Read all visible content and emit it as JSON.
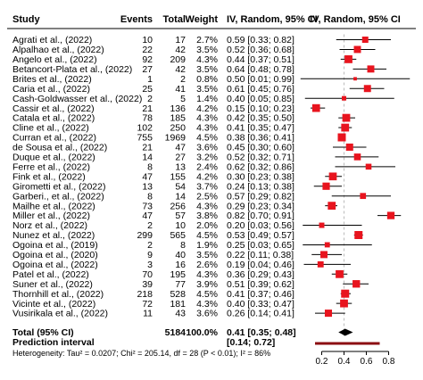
{
  "header": {
    "study": "Study",
    "events": "Events",
    "total": "Total",
    "weight": "Weight",
    "effect": "IV, Random, 95% CI",
    "plot_title": "IV, Random, 95% CI"
  },
  "summary": {
    "label": "Total (95% CI)",
    "total": "5184",
    "weight": "100.0%",
    "ci_text": "0.41 [0.35; 0.48]",
    "estimate": 0.41,
    "lower": 0.35,
    "upper": 0.48,
    "prediction_label": "Prediction interval",
    "prediction_text": "[0.14; 0.72]",
    "prediction_lower": 0.14,
    "prediction_upper": 0.72,
    "heterogeneity": "Heterogeneity: Tau² = 0.0207; Chi² = 205.14, df = 28 (P < 0.01); I² = 86%"
  },
  "colors": {
    "square": "#e8141e",
    "prediction": "#8b0d12",
    "line": "#000000",
    "grid": "#bbbbbb"
  },
  "chart_data": {
    "type": "forest",
    "xlim": [
      0.1,
      0.9
    ],
    "xticks": [
      0.2,
      0.4,
      0.6,
      0.8
    ],
    "reference_line": 0.4,
    "studies": [
      {
        "name": "Agrati et al., (2022)",
        "events": 10,
        "total": 17,
        "weight": "2.7%",
        "ci": "0.59 [0.33; 0.82]",
        "est": 0.59,
        "lo": 0.33,
        "hi": 0.82
      },
      {
        "name": "Alpalhao et al., (2022)",
        "events": 22,
        "total": 42,
        "weight": "3.5%",
        "ci": "0.52 [0.36; 0.68]",
        "est": 0.52,
        "lo": 0.36,
        "hi": 0.68
      },
      {
        "name": "Angelo et al., (2022)",
        "events": 92,
        "total": 209,
        "weight": "4.3%",
        "ci": "0.44 [0.37; 0.51]",
        "est": 0.44,
        "lo": 0.37,
        "hi": 0.51
      },
      {
        "name": "Betancort-Plata et al., (2022)",
        "events": 27,
        "total": 42,
        "weight": "3.5%",
        "ci": "0.64 [0.48; 0.78]",
        "est": 0.64,
        "lo": 0.48,
        "hi": 0.78
      },
      {
        "name": "Brites et al., (2022)",
        "events": 1,
        "total": 2,
        "weight": "0.8%",
        "ci": "0.50 [0.01; 0.99]",
        "est": 0.5,
        "lo": 0.01,
        "hi": 0.99
      },
      {
        "name": "Caria et al., (2022)",
        "events": 25,
        "total": 41,
        "weight": "3.5%",
        "ci": "0.61 [0.45; 0.76]",
        "est": 0.61,
        "lo": 0.45,
        "hi": 0.76
      },
      {
        "name": "Cash-Goldwasser et al., (2022)",
        "events": 2,
        "total": 5,
        "weight": "1.4%",
        "ci": "0.40 [0.05; 0.85]",
        "est": 0.4,
        "lo": 0.05,
        "hi": 0.85
      },
      {
        "name": "Cassir et al., (2022)",
        "events": 21,
        "total": 136,
        "weight": "4.2%",
        "ci": "0.15 [0.10; 0.23]",
        "est": 0.15,
        "lo": 0.1,
        "hi": 0.23
      },
      {
        "name": "Catala et al., (2022)",
        "events": 78,
        "total": 185,
        "weight": "4.3%",
        "ci": "0.42 [0.35; 0.50]",
        "est": 0.42,
        "lo": 0.35,
        "hi": 0.5
      },
      {
        "name": "Cline et al., (2022)",
        "events": 102,
        "total": 250,
        "weight": "4.3%",
        "ci": "0.41 [0.35; 0.47]",
        "est": 0.41,
        "lo": 0.35,
        "hi": 0.47
      },
      {
        "name": "Curran et al., (2022)",
        "events": 755,
        "total": 1969,
        "weight": "4.5%",
        "ci": "0.38 [0.36; 0.41]",
        "est": 0.38,
        "lo": 0.36,
        "hi": 0.41
      },
      {
        "name": "de Sousa et al., (2022)",
        "events": 21,
        "total": 47,
        "weight": "3.6%",
        "ci": "0.45 [0.30; 0.60]",
        "est": 0.45,
        "lo": 0.3,
        "hi": 0.6
      },
      {
        "name": "Duque et al., (2022)",
        "events": 14,
        "total": 27,
        "weight": "3.2%",
        "ci": "0.52 [0.32; 0.71]",
        "est": 0.52,
        "lo": 0.32,
        "hi": 0.71
      },
      {
        "name": "Ferre et al., (2022)",
        "events": 8,
        "total": 13,
        "weight": "2.4%",
        "ci": "0.62 [0.32; 0.86]",
        "est": 0.62,
        "lo": 0.32,
        "hi": 0.86
      },
      {
        "name": "Fink et al., (2022)",
        "events": 47,
        "total": 155,
        "weight": "4.2%",
        "ci": "0.30 [0.23; 0.38]",
        "est": 0.3,
        "lo": 0.23,
        "hi": 0.38
      },
      {
        "name": "Girometti et al., (2022)",
        "events": 13,
        "total": 54,
        "weight": "3.7%",
        "ci": "0.24 [0.13; 0.38]",
        "est": 0.24,
        "lo": 0.13,
        "hi": 0.38
      },
      {
        "name": "Garberi., et al., (2022)",
        "events": 8,
        "total": 14,
        "weight": "2.5%",
        "ci": "0.57 [0.29; 0.82]",
        "est": 0.57,
        "lo": 0.29,
        "hi": 0.82
      },
      {
        "name": "Mailhe et al., (2022)",
        "events": 73,
        "total": 256,
        "weight": "4.3%",
        "ci": "0.29 [0.23; 0.34]",
        "est": 0.29,
        "lo": 0.23,
        "hi": 0.34
      },
      {
        "name": "Miller et al., (2022)",
        "events": 47,
        "total": 57,
        "weight": "3.8%",
        "ci": "0.82 [0.70; 0.91]",
        "est": 0.82,
        "lo": 0.7,
        "hi": 0.91
      },
      {
        "name": "Norz et al., (2022)",
        "events": 2,
        "total": 10,
        "weight": "2.0%",
        "ci": "0.20 [0.03; 0.56]",
        "est": 0.2,
        "lo": 0.03,
        "hi": 0.56
      },
      {
        "name": "Nunez et al., (2022)",
        "events": 299,
        "total": 565,
        "weight": "4.5%",
        "ci": "0.53 [0.49; 0.57]",
        "est": 0.53,
        "lo": 0.49,
        "hi": 0.57
      },
      {
        "name": "Ogoina et al., (2019)",
        "events": 2,
        "total": 8,
        "weight": "1.9%",
        "ci": "0.25 [0.03; 0.65]",
        "est": 0.25,
        "lo": 0.03,
        "hi": 0.65
      },
      {
        "name": "Ogoina et al., (2020)",
        "events": 9,
        "total": 40,
        "weight": "3.5%",
        "ci": "0.22 [0.11; 0.38]",
        "est": 0.22,
        "lo": 0.11,
        "hi": 0.38
      },
      {
        "name": "Ogoina et al., (2022)",
        "events": 3,
        "total": 16,
        "weight": "2.6%",
        "ci": "0.19 [0.04; 0.46]",
        "est": 0.19,
        "lo": 0.04,
        "hi": 0.46
      },
      {
        "name": "Patel et al., (2022)",
        "events": 70,
        "total": 195,
        "weight": "4.3%",
        "ci": "0.36 [0.29; 0.43]",
        "est": 0.36,
        "lo": 0.29,
        "hi": 0.43
      },
      {
        "name": "Suner et al., (2022)",
        "events": 39,
        "total": 77,
        "weight": "3.9%",
        "ci": "0.51 [0.39; 0.62]",
        "est": 0.51,
        "lo": 0.39,
        "hi": 0.62
      },
      {
        "name": "Thornhill et al., (2022)",
        "events": 218,
        "total": 528,
        "weight": "4.5%",
        "ci": "0.41 [0.37; 0.46]",
        "est": 0.41,
        "lo": 0.37,
        "hi": 0.46
      },
      {
        "name": "Vicinte et al., (2022)",
        "events": 72,
        "total": 181,
        "weight": "4.3%",
        "ci": "0.40 [0.33; 0.47]",
        "est": 0.4,
        "lo": 0.33,
        "hi": 0.47
      },
      {
        "name": "Vusirikala et al., (2022)",
        "events": 11,
        "total": 43,
        "weight": "3.6%",
        "ci": "0.26 [0.14; 0.41]",
        "est": 0.26,
        "lo": 0.14,
        "hi": 0.41
      }
    ]
  }
}
